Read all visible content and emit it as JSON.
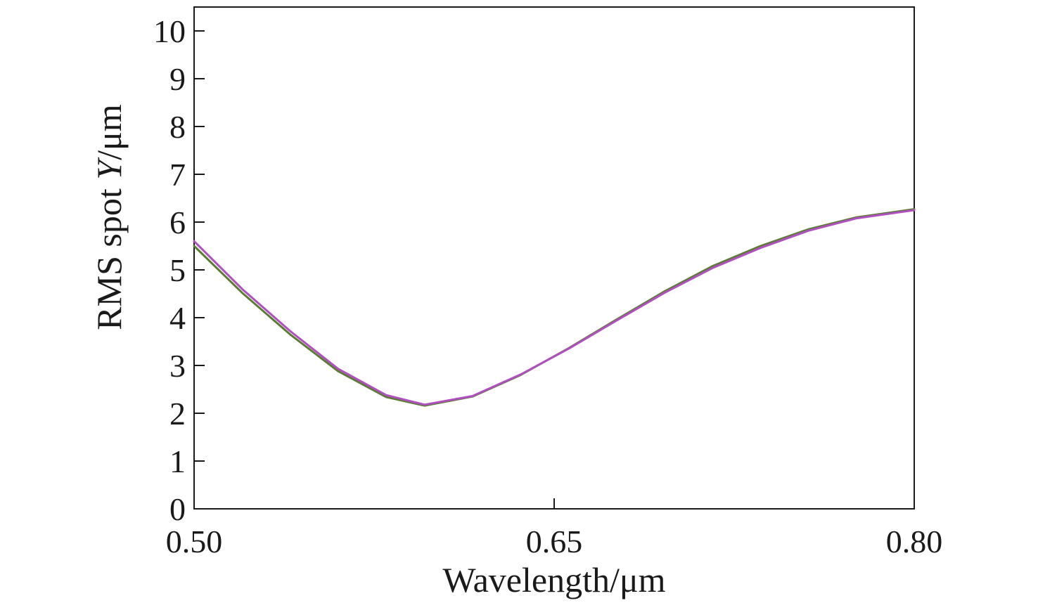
{
  "chart_data": {
    "type": "line",
    "title": "",
    "xlabel": "Wavelength/μm",
    "ylabel_prefix": "RMS spot ",
    "ylabel_italic": "Y",
    "ylabel_suffix": "/μm",
    "xlim": [
      0.5,
      0.8
    ],
    "ylim": [
      0,
      10.5
    ],
    "xticks": [
      0.5,
      0.65,
      0.8
    ],
    "xtick_labels": [
      "0.50",
      "0.65",
      "0.80"
    ],
    "yticks": [
      0,
      1,
      2,
      3,
      4,
      5,
      6,
      7,
      8,
      9,
      10
    ],
    "ytick_labels": [
      "0",
      "1",
      "2",
      "3",
      "4",
      "5",
      "6",
      "7",
      "8",
      "9",
      "10"
    ],
    "grid": false,
    "series": [
      {
        "name": "series-green",
        "color": "#5a7d32",
        "x": [
          0.5,
          0.52,
          0.54,
          0.56,
          0.58,
          0.596,
          0.616,
          0.636,
          0.656,
          0.676,
          0.696,
          0.716,
          0.736,
          0.756,
          0.776,
          0.8
        ],
        "y": [
          5.5,
          4.52,
          3.65,
          2.88,
          2.34,
          2.16,
          2.35,
          2.8,
          3.36,
          3.96,
          4.55,
          5.08,
          5.5,
          5.85,
          6.1,
          6.27
        ]
      },
      {
        "name": "series-magenta",
        "color": "#b04fc0",
        "x": [
          0.5,
          0.52,
          0.54,
          0.56,
          0.58,
          0.596,
          0.616,
          0.636,
          0.656,
          0.676,
          0.696,
          0.716,
          0.736,
          0.756,
          0.776,
          0.8
        ],
        "y": [
          5.6,
          4.6,
          3.72,
          2.93,
          2.38,
          2.18,
          2.36,
          2.81,
          3.35,
          3.94,
          4.52,
          5.04,
          5.46,
          5.82,
          6.08,
          6.25
        ]
      }
    ]
  }
}
